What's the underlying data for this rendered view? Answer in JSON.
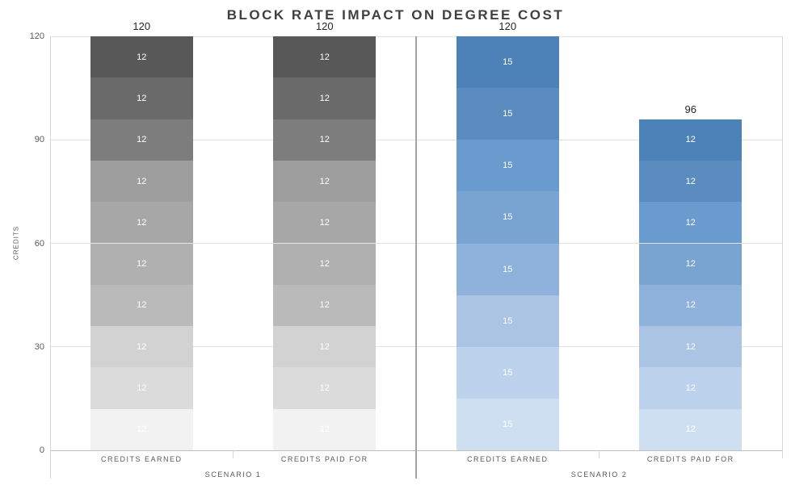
{
  "chart_data": {
    "type": "bar",
    "stacked": true,
    "title": "BLOCK RATE IMPACT ON DEGREE COST",
    "ylabel": "CREDITS",
    "ylim": [
      0,
      120
    ],
    "yticks": [
      0,
      30,
      60,
      90,
      120
    ],
    "grid": true,
    "legend": false,
    "colors": {
      "grid": "#e3e3e3",
      "baseline": "#c0c0c0",
      "edge_line": "#d6d6d6",
      "scenario_divider": "#a3a3a3",
      "tick_text": "#595959",
      "title_text": "#404040",
      "total_text": "#262626",
      "segment_text": "#ffffff"
    },
    "palettes": {
      "gray_bottom_to_top": [
        "#f2f2f2",
        "#dbdbdb",
        "#d2d2d2",
        "#bababa",
        "#b0b0b0",
        "#a7a7a7",
        "#9e9e9e",
        "#7d7d7d",
        "#6a6a6a",
        "#585858"
      ],
      "blue_bottom_to_top": [
        "#cedff2",
        "#bdd2ec",
        "#abc4e4",
        "#8fb2dc",
        "#79a4d2",
        "#699bce",
        "#5a8cc0",
        "#4d82b8"
      ]
    },
    "groups": [
      {
        "label": "SCENARIO 1",
        "bars": [
          {
            "label": "CREDITS EARNED",
            "palette": "gray_bottom_to_top",
            "total_label": "120",
            "segments_bottom_to_top": [
              12,
              12,
              12,
              12,
              12,
              12,
              12,
              12,
              12,
              12
            ]
          },
          {
            "label": "CREDITS PAID FOR",
            "palette": "gray_bottom_to_top",
            "total_label": "120",
            "segments_bottom_to_top": [
              12,
              12,
              12,
              12,
              12,
              12,
              12,
              12,
              12,
              12
            ]
          }
        ]
      },
      {
        "label": "SCENARIO 2",
        "bars": [
          {
            "label": "CREDITS EARNED",
            "palette": "blue_bottom_to_top",
            "total_label": "120",
            "segments_bottom_to_top": [
              15,
              15,
              15,
              15,
              15,
              15,
              15,
              15
            ]
          },
          {
            "label": "CREDITS PAID FOR",
            "palette": "blue_bottom_to_top",
            "total_label": "96",
            "segments_bottom_to_top": [
              12,
              12,
              12,
              12,
              12,
              12,
              12,
              12
            ]
          }
        ]
      }
    ]
  }
}
